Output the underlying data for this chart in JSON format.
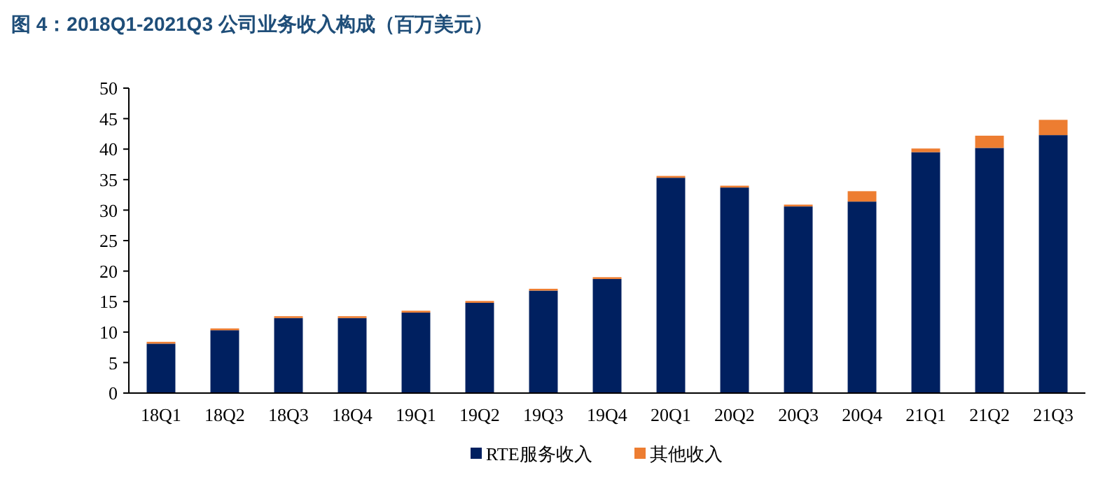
{
  "chart_data": {
    "type": "bar",
    "title": "图 4：2018Q1-2021Q3 公司业务收入构成（百万美元）",
    "categories": [
      "18Q1",
      "18Q2",
      "18Q3",
      "18Q4",
      "19Q1",
      "19Q2",
      "19Q3",
      "19Q4",
      "20Q1",
      "20Q2",
      "20Q3",
      "20Q4",
      "21Q1",
      "21Q2",
      "21Q3"
    ],
    "series": [
      {
        "name": "RTE服务收入",
        "color": "#002060",
        "values": [
          8.1,
          10.3,
          12.3,
          12.3,
          13.2,
          14.8,
          16.8,
          18.7,
          35.3,
          33.7,
          30.6,
          31.4,
          39.5,
          40.2,
          42.3
        ]
      },
      {
        "name": "其他收入",
        "color": "#ed7d31",
        "values": [
          0.3,
          0.3,
          0.3,
          0.3,
          0.3,
          0.3,
          0.3,
          0.3,
          0.3,
          0.3,
          0.3,
          1.7,
          0.6,
          2.0,
          2.5
        ]
      }
    ],
    "stacked": true,
    "ylim": [
      0,
      50
    ],
    "yticks": [
      0,
      5,
      10,
      15,
      20,
      25,
      30,
      35,
      40,
      45,
      50
    ],
    "grid": false,
    "legend": "bottom"
  }
}
